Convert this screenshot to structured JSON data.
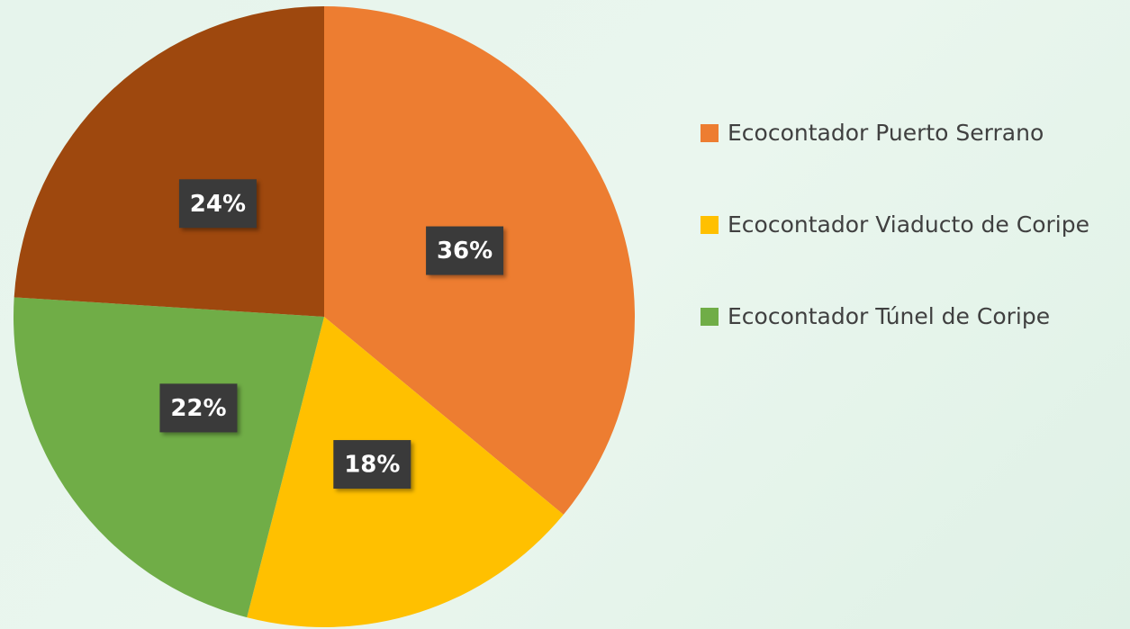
{
  "chart_data": {
    "type": "pie",
    "categories": [
      "Ecocontador Puerto Serrano",
      "Ecocontador Viaducto de Coripe",
      "Ecocontador Túnel de Coripe",
      null
    ],
    "values": [
      36,
      18,
      22,
      24
    ],
    "value_labels": [
      "36%",
      "18%",
      "22%",
      "24%"
    ],
    "colors": [
      "#ED7D31",
      "#FFC000",
      "#70AD47",
      "#9E480E"
    ],
    "legend": "right"
  }
}
